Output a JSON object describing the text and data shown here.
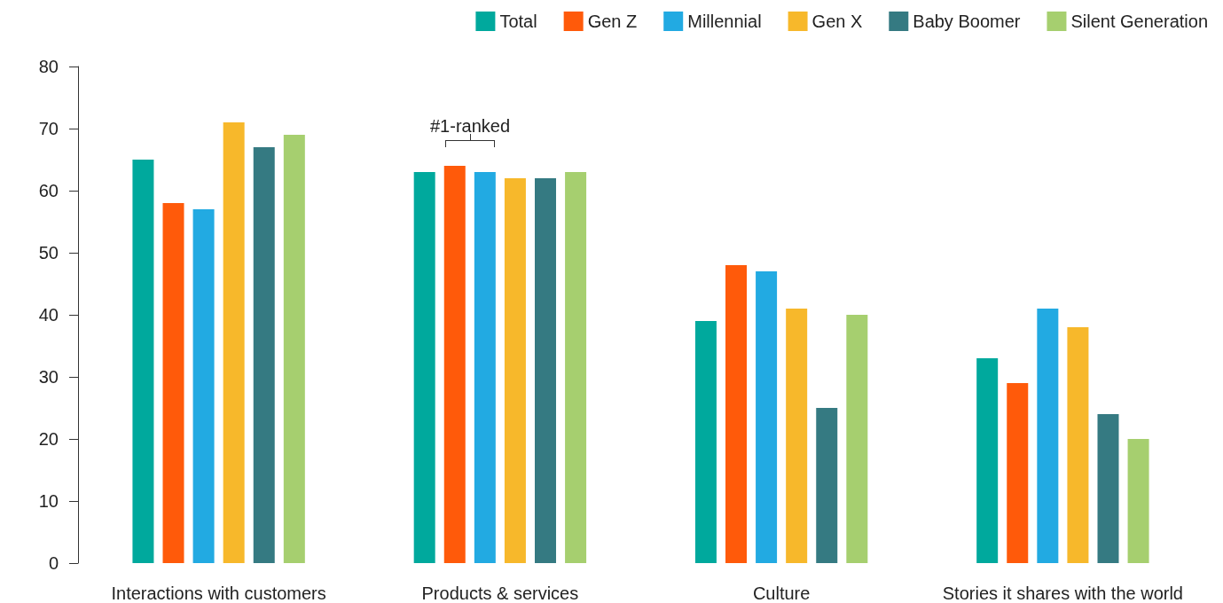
{
  "chart_data": {
    "type": "bar",
    "categories": [
      "Interactions with customers",
      "Products & services",
      "Culture",
      "Stories it shares with the world"
    ],
    "series": [
      {
        "name": "Total",
        "color": "#00a99d",
        "values": [
          65,
          63,
          39,
          33
        ]
      },
      {
        "name": "Gen Z",
        "color": "#ff5a0a",
        "values": [
          58,
          64,
          48,
          29
        ]
      },
      {
        "name": "Millennial",
        "color": "#22aae2",
        "values": [
          57,
          63,
          47,
          41
        ]
      },
      {
        "name": "Gen X",
        "color": "#f7b82b",
        "values": [
          71,
          62,
          41,
          38
        ]
      },
      {
        "name": "Baby Boomer",
        "color": "#357a82",
        "values": [
          67,
          62,
          25,
          24
        ]
      },
      {
        "name": "Silent Generation",
        "color": "#a6cf6f",
        "values": [
          69,
          63,
          40,
          20
        ]
      }
    ],
    "ylim": [
      0,
      80
    ],
    "yticks": [
      0,
      10,
      20,
      30,
      40,
      50,
      60,
      70,
      80
    ],
    "grid": false,
    "legend": "top right",
    "annotations": [
      "#1-ranked"
    ]
  }
}
